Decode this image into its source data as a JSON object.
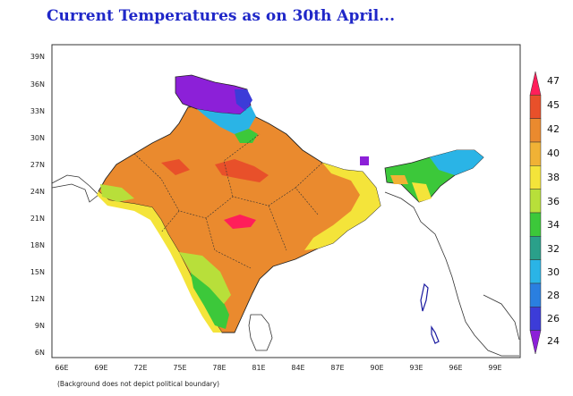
{
  "title": "Current Temperatures as on 30th April...",
  "note": "(Background does not depict political boundary)",
  "lat_labels": [
    "39N",
    "36N",
    "33N",
    "30N",
    "27N",
    "24N",
    "21N",
    "18N",
    "15N",
    "12N",
    "9N",
    "6N"
  ],
  "lon_labels": [
    "66E",
    "69E",
    "72E",
    "75E",
    "78E",
    "81E",
    "84E",
    "87E",
    "90E",
    "93E",
    "96E",
    "99E"
  ],
  "colorbar": {
    "labels": [
      "47",
      "45",
      "42",
      "40",
      "38",
      "36",
      "34",
      "32",
      "30",
      "28",
      "26",
      "24"
    ],
    "colors": [
      "#ff1e5a",
      "#e8502a",
      "#ea8a2e",
      "#f0b235",
      "#f4e43a",
      "#b8df3a",
      "#3cc83a",
      "#2aa08a",
      "#2ab4e6",
      "#2a7fe0",
      "#3c3cd8",
      "#8c20d8"
    ]
  },
  "legend_colors": {
    "ocean": "#ffffff",
    "land_outline": "#222222",
    "state_boundaries": "#333333",
    "station_labels": "#1a1aa0"
  }
}
